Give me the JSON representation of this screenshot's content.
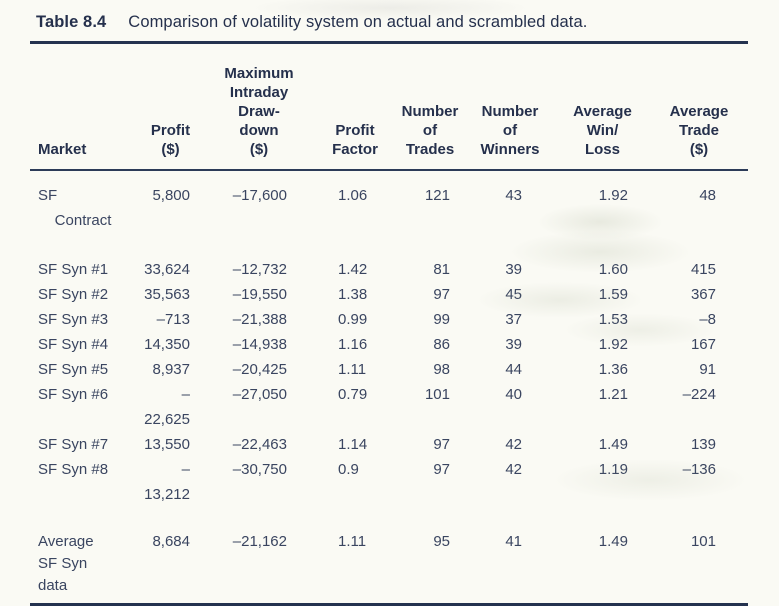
{
  "caption": {
    "label": "Table 8.4",
    "text": "Comparison of volatility system on actual and scrambled data."
  },
  "colors": {
    "text": "#3a4560",
    "rule": "#24324f",
    "paper": "#fafaf4"
  },
  "table": {
    "columns": [
      {
        "id": "market",
        "header": "Market"
      },
      {
        "id": "profit",
        "header": "Profit\n($)"
      },
      {
        "id": "drawdown",
        "header": "Maximum\nIntraday\nDraw-\ndown\n($)"
      },
      {
        "id": "profit_factor",
        "header": "Profit\nFactor"
      },
      {
        "id": "trades",
        "header": "Number\nof\nTrades"
      },
      {
        "id": "winners",
        "header": "Number\nof\nWinners"
      },
      {
        "id": "win_loss",
        "header": "Average\nWin/\nLoss"
      },
      {
        "id": "avg_trade",
        "header": "Average\nTrade\n($)"
      }
    ],
    "rows": [
      {
        "group": "actual",
        "market": "SF\n    Contract",
        "profit": "5,800",
        "drawdown": "–17,600",
        "profit_factor": "1.06",
        "trades": "121",
        "winners": "43",
        "win_loss": "1.92",
        "avg_trade": "48"
      },
      {
        "group": "scrambled",
        "market": "SF Syn #1",
        "profit": "33,624",
        "drawdown": "–12,732",
        "profit_factor": "1.42",
        "trades": "81",
        "winners": "39",
        "win_loss": "1.60",
        "avg_trade": "415"
      },
      {
        "group": "scrambled",
        "market": "SF Syn #2",
        "profit": "35,563",
        "drawdown": "–19,550",
        "profit_factor": "1.38",
        "trades": "97",
        "winners": "45",
        "win_loss": "1.59",
        "avg_trade": "367"
      },
      {
        "group": "scrambled",
        "market": "SF Syn #3",
        "profit": "–713",
        "drawdown": "–21,388",
        "profit_factor": "0.99",
        "trades": "99",
        "winners": "37",
        "win_loss": "1.53",
        "avg_trade": "–8"
      },
      {
        "group": "scrambled",
        "market": "SF Syn #4",
        "profit": "14,350",
        "drawdown": "–14,938",
        "profit_factor": "1.16",
        "trades": "86",
        "winners": "39",
        "win_loss": "1.92",
        "avg_trade": "167"
      },
      {
        "group": "scrambled",
        "market": "SF Syn #5",
        "profit": "8,937",
        "drawdown": "–20,425",
        "profit_factor": "1.11",
        "trades": "98",
        "winners": "44",
        "win_loss": "1.36",
        "avg_trade": "91"
      },
      {
        "group": "scrambled",
        "market": "SF Syn #6",
        "profit": "–22,625",
        "drawdown": "–27,050",
        "profit_factor": "0.79",
        "trades": "101",
        "winners": "40",
        "win_loss": "1.21",
        "avg_trade": "–224"
      },
      {
        "group": "scrambled",
        "market": "SF Syn #7",
        "profit": "13,550",
        "drawdown": "–22,463",
        "profit_factor": "1.14",
        "trades": "97",
        "winners": "42",
        "win_loss": "1.49",
        "avg_trade": "139"
      },
      {
        "group": "scrambled",
        "market": "SF Syn #8",
        "profit": "–13,212",
        "drawdown": "–30,750",
        "profit_factor": "0.9",
        "trades": "97",
        "winners": "42",
        "win_loss": "1.19",
        "avg_trade": "–136"
      },
      {
        "group": "summary",
        "market": "Average\nSF Syn\ndata",
        "profit": "8,684",
        "drawdown": "–21,162",
        "profit_factor": "1.11",
        "trades": "95",
        "winners": "41",
        "win_loss": "1.49",
        "avg_trade": "101"
      }
    ]
  }
}
